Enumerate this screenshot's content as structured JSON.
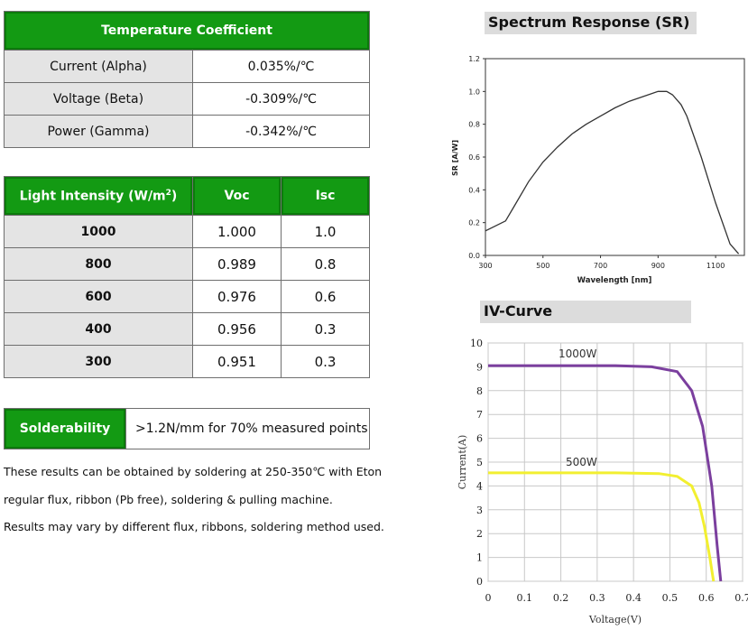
{
  "temp_coefficient": {
    "title": "Temperature Coefficient",
    "rows": [
      {
        "label": "Current (Alpha)",
        "value": "0.035%/℃"
      },
      {
        "label": "Voltage (Beta)",
        "value": "-0.309%/℃"
      },
      {
        "label": "Power (Gamma)",
        "value": "-0.342%/℃"
      }
    ]
  },
  "light_intensity": {
    "header_main": "Light Intensity (W/m",
    "header_sup": "2",
    "header_close": ")",
    "col_voc": "Voc",
    "col_isc": "Isc",
    "rows": [
      {
        "intensity": "1000",
        "voc": "1.000",
        "isc": "1.0"
      },
      {
        "intensity": "800",
        "voc": "0.989",
        "isc": "0.8"
      },
      {
        "intensity": "600",
        "voc": "0.976",
        "isc": "0.6"
      },
      {
        "intensity": "400",
        "voc": "0.956",
        "isc": "0.3"
      },
      {
        "intensity": "300",
        "voc": "0.951",
        "isc": "0.3"
      }
    ]
  },
  "solderability": {
    "label": "Solderability",
    "value": ">1.2N/mm for 70% measured points"
  },
  "notes": [
    "These results can be obtained by soldering at 250-350℃ with Eton",
    "regular flux, ribbon (Pb free), soldering & pulling machine.",
    "Results may vary by different flux, ribbons, soldering method used."
  ],
  "spectrum_section_title": "Spectrum Response (SR)",
  "iv_section_title": "IV-Curve",
  "chart_data": [
    {
      "type": "line",
      "title": "Spectrum Response (SR)",
      "xlabel": "Wavelength [nm]",
      "ylabel": "SR [A/W]",
      "xlim": [
        300,
        1200
      ],
      "ylim": [
        0,
        1.2
      ],
      "xticks": [
        "300",
        "500",
        "700",
        "900",
        "1100"
      ],
      "yticks": [
        "0.0",
        "0.2",
        "0.4",
        "0.6",
        "0.8",
        "1.0",
        "1.2"
      ],
      "grid": false,
      "series": [
        {
          "name": "SR",
          "color": "#333333",
          "x": [
            300,
            370,
            400,
            450,
            500,
            550,
            600,
            650,
            700,
            750,
            800,
            850,
            900,
            930,
            950,
            980,
            1000,
            1050,
            1100,
            1150,
            1180
          ],
          "y": [
            0.15,
            0.21,
            0.3,
            0.45,
            0.57,
            0.66,
            0.74,
            0.8,
            0.85,
            0.9,
            0.94,
            0.97,
            1.0,
            1.0,
            0.98,
            0.92,
            0.85,
            0.6,
            0.32,
            0.07,
            0.01
          ]
        }
      ]
    },
    {
      "type": "line",
      "title": "IV-Curve",
      "xlabel": "Voltage(V)",
      "ylabel": "Current(A)",
      "xlim": [
        0,
        0.7
      ],
      "ylim": [
        0,
        10
      ],
      "xticks": [
        "0",
        "0.1",
        "0.2",
        "0.3",
        "0.4",
        "0.5",
        "0.6",
        "0.7"
      ],
      "yticks": [
        "0",
        "1",
        "2",
        "3",
        "4",
        "5",
        "6",
        "7",
        "8",
        "9",
        "10"
      ],
      "grid": true,
      "series": [
        {
          "name": "1000W",
          "color": "#7b3f9e",
          "x": [
            0,
            0.35,
            0.45,
            0.52,
            0.56,
            0.59,
            0.615,
            0.63,
            0.64
          ],
          "y": [
            9.05,
            9.05,
            9.0,
            8.8,
            8.0,
            6.5,
            4.0,
            1.5,
            0
          ]
        },
        {
          "name": "500W",
          "color": "#f2ef30",
          "x": [
            0,
            0.35,
            0.47,
            0.52,
            0.56,
            0.58,
            0.595,
            0.61,
            0.62
          ],
          "y": [
            4.55,
            4.55,
            4.52,
            4.4,
            4.0,
            3.3,
            2.3,
            1.0,
            0
          ]
        }
      ]
    }
  ]
}
